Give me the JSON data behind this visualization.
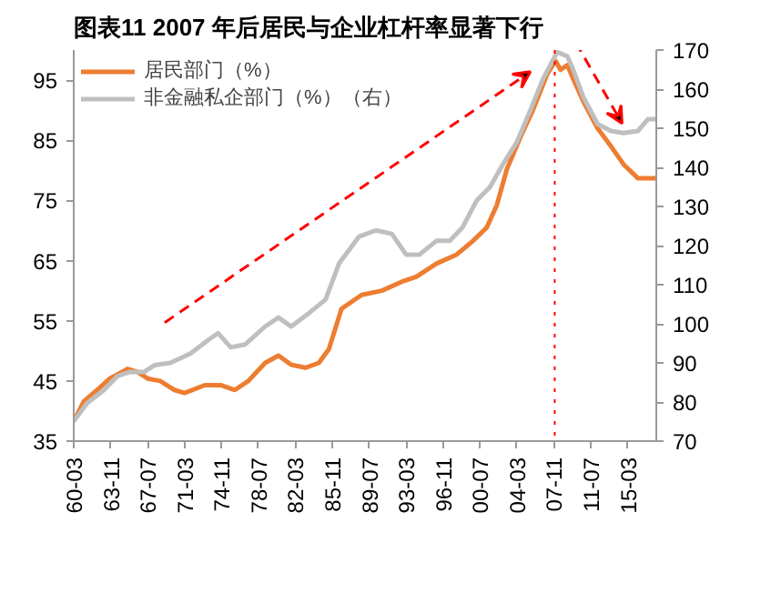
{
  "chart_data": {
    "type": "line",
    "title": "图表11    2007 年后居民与企业杠杆率显著下行",
    "series": [
      {
        "name": "居民部门（%）",
        "color": "#ed7d31",
        "axis": "y",
        "x": [
          "1960-03",
          "1961-03",
          "1962-07",
          "1963-10",
          "1965-07",
          "1966-07",
          "1967-07",
          "1968-10",
          "1970-03",
          "1971-03",
          "1973-03",
          "1974-10",
          "1976-03",
          "1977-07",
          "1979-03",
          "1980-07",
          "1981-10",
          "1983-03",
          "1984-07",
          "1985-07",
          "1986-10",
          "1988-10",
          "1990-10",
          "1992-10",
          "1994-03",
          "1996-03",
          "1998-03",
          "1999-10",
          "2001-03",
          "2002-03",
          "2003-03",
          "2004-07",
          "2005-10",
          "2007-03",
          "2008-01",
          "2008-07",
          "2009-03",
          "2009-10",
          "2010-10",
          "2012-03",
          "2013-07",
          "2014-10",
          "2016-03",
          "2017-03",
          "2018-01"
        ],
        "values": [
          38.3,
          41.6,
          43.5,
          45.4,
          47,
          46.5,
          45.4,
          45,
          43.5,
          43,
          44.3,
          44.3,
          43.5,
          45,
          48,
          49.2,
          47.7,
          47.2,
          48,
          50.3,
          57,
          59.3,
          60,
          61.5,
          62.3,
          64.5,
          66,
          68.2,
          70.5,
          74.2,
          80.2,
          85.5,
          90,
          96,
          98.2,
          96.7,
          97.5,
          95.2,
          91.5,
          87,
          84,
          81,
          78.7,
          78.7,
          78.7
        ]
      },
      {
        "name": "非金融私企部门（%）（右）",
        "color": "#bfbfbf",
        "axis": "y2",
        "x": [
          "1960-03",
          "1961-07",
          "1963-03",
          "1964-07",
          "1965-10",
          "1967-03",
          "1968-03",
          "1969-10",
          "1971-10",
          "1973-07",
          "1974-07",
          "1975-10",
          "1977-03",
          "1979-03",
          "1980-07",
          "1981-10",
          "1983-07",
          "1985-03",
          "1986-07",
          "1988-07",
          "1990-03",
          "1991-10",
          "1993-03",
          "1994-07",
          "1996-03",
          "1997-07",
          "1998-10",
          "2000-03",
          "2001-07",
          "2002-10",
          "2004-03",
          "2005-07",
          "2006-10",
          "2008-03",
          "2009-03",
          "2009-10",
          "2010-10",
          "2012-03",
          "2013-07",
          "2014-10",
          "2016-03",
          "2017-03",
          "2018-01"
        ],
        "values": [
          75.1,
          79.7,
          83.1,
          86.6,
          87.7,
          87.7,
          89.4,
          90,
          92.4,
          95.8,
          97.6,
          94,
          94.7,
          99.3,
          101.6,
          99.3,
          102.7,
          106.2,
          115.4,
          122.3,
          123.9,
          123,
          117.7,
          117.7,
          121.2,
          121.2,
          124.6,
          131.5,
          135,
          140.7,
          146.5,
          154.6,
          162.6,
          169.5,
          168.4,
          165,
          158,
          151.1,
          149.3,
          148.8,
          149.3,
          152.3,
          152.3
        ]
      }
    ],
    "xlim": [
      "1960-03",
      "2018-01"
    ],
    "xticks": [
      {
        "value": "1960-03",
        "label": "60-03"
      },
      {
        "value": "1963-11",
        "label": "63-11"
      },
      {
        "value": "1967-07",
        "label": "67-07"
      },
      {
        "value": "1971-03",
        "label": "71-03"
      },
      {
        "value": "1974-11",
        "label": "74-11"
      },
      {
        "value": "1978-07",
        "label": "78-07"
      },
      {
        "value": "1982-03",
        "label": "82-03"
      },
      {
        "value": "1985-11",
        "label": "85-11"
      },
      {
        "value": "1989-07",
        "label": "89-07"
      },
      {
        "value": "1993-03",
        "label": "93-03"
      },
      {
        "value": "1996-11",
        "label": "96-11"
      },
      {
        "value": "2000-07",
        "label": "00-07"
      },
      {
        "value": "2004-03",
        "label": "04-03"
      },
      {
        "value": "2007-11",
        "label": "07-11"
      },
      {
        "value": "2011-07",
        "label": "11-07"
      },
      {
        "value": "2015-03",
        "label": "15-03"
      }
    ],
    "ylim": [
      35,
      100
    ],
    "yticks": [
      35,
      45,
      55,
      65,
      75,
      85,
      95
    ],
    "y2lim": [
      70,
      170
    ],
    "y2ticks": [
      70,
      80,
      90,
      100,
      110,
      120,
      130,
      140,
      150,
      160,
      170
    ],
    "ref_lines": [
      {
        "axis": "x",
        "value": "2007-12",
        "color": "#ff0000",
        "line_style": "dotted"
      }
    ],
    "grid": false,
    "legend": "top left",
    "line_style": "solid",
    "marker": "none"
  }
}
